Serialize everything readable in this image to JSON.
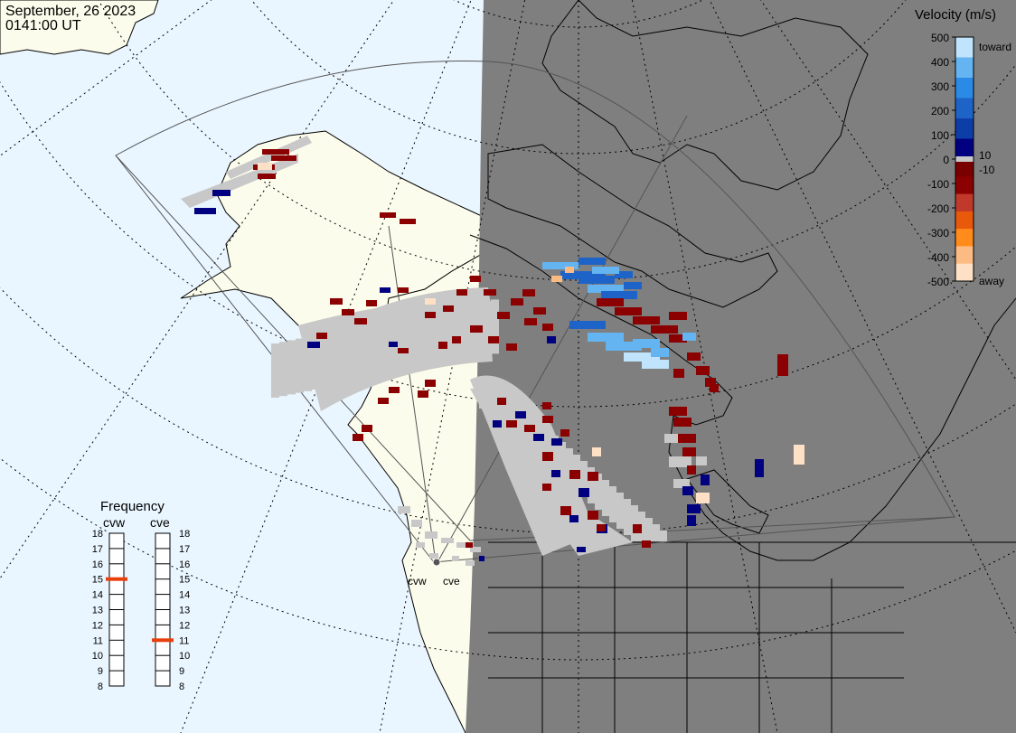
{
  "header": {
    "date": "September, 26 2023",
    "time": "0141:00 UT"
  },
  "colorbar": {
    "title": "Velocity (m/s)",
    "ticks": [
      "500",
      "400",
      "300",
      "200",
      "100",
      "0",
      "-100",
      "-200",
      "-300",
      "-400",
      "-500"
    ],
    "near_zero_pos": "10",
    "near_zero_neg": "-10",
    "toward_label": "toward",
    "away_label": "away",
    "colors": [
      "#fde0c5",
      "#fdbb84",
      "#ff8c1a",
      "#e8590c",
      "#c0392b",
      "#8b0000",
      "#7a0000",
      "#000080",
      "#0d3ea8",
      "#1e64c8",
      "#2a8ae6",
      "#63b4f0",
      "#bfe4fb"
    ]
  },
  "frequency": {
    "title": "Frequency",
    "radars": [
      {
        "code": "cvw",
        "value_mhz": 15
      },
      {
        "code": "cve",
        "value_mhz": 11
      }
    ],
    "scale": [
      "18",
      "17",
      "16",
      "15",
      "14",
      "13",
      "12",
      "11",
      "10",
      "9",
      "8"
    ]
  },
  "sites": [
    {
      "code": "cvw"
    },
    {
      "code": "cve"
    }
  ],
  "map": {
    "ocean_color": "#eaf6ff",
    "land_day_color": "#fcfcec",
    "night_color": "#7f7f7f",
    "ground_scatter_color": "#c8c8c8"
  }
}
